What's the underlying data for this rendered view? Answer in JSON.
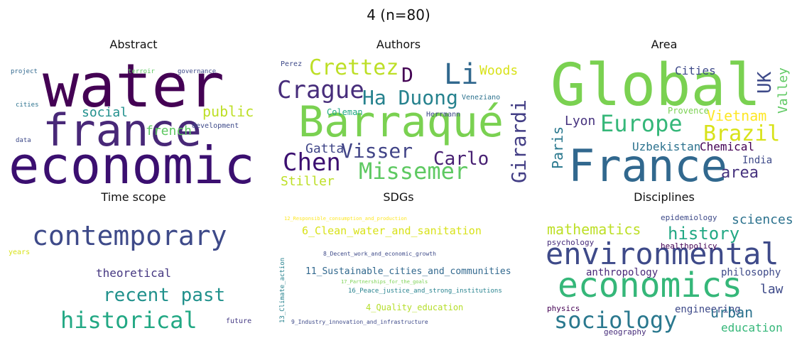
{
  "title": "4 (n=80)",
  "panels": [
    {
      "title": "Abstract",
      "words": [
        "water",
        "france",
        "economic",
        "social",
        "french",
        "public",
        "development",
        "project",
        "terroir",
        "governance",
        "cities",
        "data"
      ]
    },
    {
      "title": "Authors",
      "words": [
        "Barraqué",
        "Crague",
        "Crettez",
        "D",
        "Li",
        "Woods",
        "Ha Duong",
        "Girardi",
        "Chen",
        "Visser",
        "Missemer",
        "Carlo",
        "Gatta",
        "Stiller",
        "Coleman",
        "Herrmann",
        "Veneziano",
        "Perez"
      ]
    },
    {
      "title": "Area",
      "words": [
        "Global",
        "France",
        "Europe",
        "Brazil",
        "Vietnam",
        "UK",
        "Valley",
        "Cities",
        "Lyon",
        "Paris",
        "Uzbekistan",
        "Chemical",
        "India",
        "area",
        "Provence"
      ]
    },
    {
      "title": "Time scope",
      "words": [
        "contemporary",
        "theoretical",
        "recent past",
        "historical",
        "future",
        "years"
      ]
    },
    {
      "title": "SDGs",
      "words": [
        "6_Clean_water_and_sanitation",
        "11_Sustainable_cities_and_communities",
        "4_Quality_education",
        "16_Peace_justice_and_strong_institutions",
        "8_Decent_work_and_economic_growth",
        "9_Industry_innovation_and_infrastructure",
        "13_Climate_action",
        "12_Responsible_consumption_and_production",
        "17_Partnerships_for_the_goals"
      ]
    },
    {
      "title": "Disciplines",
      "words": [
        "environmental",
        "economics",
        "sociology",
        "mathematics",
        "history",
        "sciences",
        "epidemiology",
        "psychology",
        "healthpolicy",
        "anthropology",
        "philosophy",
        "law",
        "physics",
        "engineering",
        "urban",
        "education",
        "geography"
      ]
    }
  ]
}
